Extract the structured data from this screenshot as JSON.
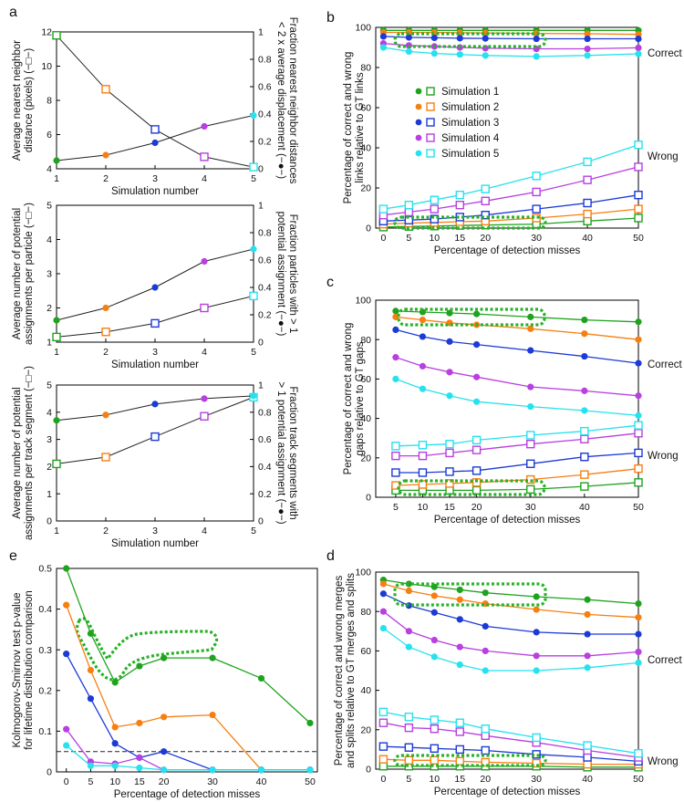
{
  "colors": {
    "s1": "#1fa31f",
    "s2": "#f77f12",
    "s3": "#1c3ad6",
    "s4": "#b83fe0",
    "s5": "#26e1ee",
    "black": "#222222",
    "highlight": "#27b227"
  },
  "panel_labels": [
    "a",
    "b",
    "c",
    "d",
    "e"
  ],
  "legend": [
    "Simulation 1",
    "Simulation 2",
    "Simulation 3",
    "Simulation 4",
    "Simulation 5"
  ],
  "chart_data": [
    {
      "id": "a1",
      "type": "line",
      "xlabel": "Simulation number",
      "ylabel": [
        "Average nearest neighbor",
        "distance (pixels) (−□−)"
      ],
      "ylabel_right": [
        "Fraction nearest neighbor distances",
        "< 2 x average displacement (−●−)"
      ],
      "x": [
        1,
        2,
        3,
        4,
        5
      ],
      "xticks": [
        "1",
        "2",
        "3",
        "4",
        "5"
      ],
      "yticks_left": [
        "4",
        "6",
        "8",
        "10",
        "12"
      ],
      "ylim_left": [
        4,
        12
      ],
      "yticks_right": [
        "0",
        "0.2",
        "0.4",
        "0.6",
        "0.8",
        "1"
      ],
      "ylim_right": [
        0,
        1
      ],
      "series": [
        {
          "name": "Average nearest neighbor distance",
          "marker": "square",
          "axis": "left",
          "values": [
            11.8,
            8.65,
            6.3,
            4.7,
            4.1
          ]
        },
        {
          "name": "Fraction nearest neighbor distances < 2x average displacement",
          "marker": "circle",
          "axis": "right",
          "values": [
            0.06,
            0.1,
            0.19,
            0.31,
            0.39
          ]
        }
      ]
    },
    {
      "id": "a2",
      "type": "line",
      "xlabel": "Simulation number",
      "ylabel": [
        "Average number of potential",
        "assignments per particle (−□−)"
      ],
      "ylabel_right": [
        "Fraction particles with > 1",
        "potential assignment (−●−)"
      ],
      "x": [
        1,
        2,
        3,
        4,
        5
      ],
      "xticks": [
        "1",
        "2",
        "3",
        "4",
        "5"
      ],
      "yticks_left": [
        "1",
        "2",
        "3",
        "4",
        "5"
      ],
      "ylim_left": [
        1,
        5
      ],
      "yticks_right": [
        "0",
        "0.2",
        "0.4",
        "0.6",
        "0.8",
        "1"
      ],
      "ylim_right": [
        0,
        1
      ],
      "series": [
        {
          "name": "Average number of potential assignments per particle",
          "marker": "square",
          "axis": "left",
          "values": [
            1.15,
            1.3,
            1.55,
            2.0,
            2.35
          ]
        },
        {
          "name": "Fraction particles with > 1 potential assignment",
          "marker": "circle",
          "axis": "right",
          "values": [
            0.16,
            0.25,
            0.4,
            0.59,
            0.68
          ]
        }
      ]
    },
    {
      "id": "a3",
      "type": "line",
      "xlabel": "Simulation number",
      "ylabel": [
        "Average number of potential",
        "assignments per track segment (−□−)"
      ],
      "ylabel_right": [
        "Fraction track segments with",
        "> 1 potential assignment (−●−)"
      ],
      "x": [
        1,
        2,
        3,
        4,
        5
      ],
      "xticks": [
        "1",
        "2",
        "3",
        "4",
        "5"
      ],
      "yticks_left": [
        "0",
        "1",
        "2",
        "3",
        "4",
        "5"
      ],
      "ylim_left": [
        0,
        5
      ],
      "yticks_right": [
        "0",
        "0.2",
        "0.4",
        "0.6",
        "0.8",
        "1"
      ],
      "ylim_right": [
        0,
        1
      ],
      "series": [
        {
          "name": "Average number of potential assignments per track segment",
          "marker": "square",
          "axis": "left",
          "values": [
            2.1,
            2.35,
            3.1,
            3.85,
            4.55
          ]
        },
        {
          "name": "Fraction track segments with > 1 potential assignment",
          "marker": "circle",
          "axis": "right",
          "values": [
            0.74,
            0.78,
            0.86,
            0.9,
            0.92
          ]
        }
      ]
    },
    {
      "id": "b",
      "type": "line",
      "xlabel": "Percentage of detection misses",
      "ylabel": [
        "Percentage of correct and wrong",
        "links relative to GT links"
      ],
      "x": [
        0,
        5,
        10,
        15,
        20,
        30,
        40,
        50
      ],
      "xticks": [
        "0",
        "5",
        "10",
        "15",
        "20",
        "30",
        "40",
        "50"
      ],
      "yticks": [
        "0",
        "20",
        "40",
        "60",
        "80",
        "100"
      ],
      "ylim": [
        0,
        100
      ],
      "labels": {
        "correct": "Correct",
        "wrong": "Wrong"
      },
      "correct": [
        {
          "name": "Simulation 1",
          "values": [
            98.5,
            98.5,
            98.5,
            98.5,
            98.5,
            98.5,
            98.5,
            98.5
          ]
        },
        {
          "name": "Simulation 2",
          "values": [
            97.5,
            97.5,
            97.5,
            97.3,
            97.2,
            97.0,
            96.8,
            96.5
          ]
        },
        {
          "name": "Simulation 3",
          "values": [
            95.5,
            95.0,
            94.8,
            94.6,
            94.5,
            94.3,
            94.3,
            94.3
          ]
        },
        {
          "name": "Simulation 4",
          "values": [
            92.0,
            91.0,
            90.5,
            90.0,
            89.6,
            89.3,
            89.3,
            89.8
          ]
        },
        {
          "name": "Simulation 5",
          "values": [
            90.0,
            88.0,
            87.0,
            86.5,
            86.0,
            85.5,
            86.0,
            86.8
          ]
        }
      ],
      "wrong": [
        {
          "name": "Simulation 1",
          "values": [
            0.5,
            0.8,
            1.0,
            1.3,
            1.5,
            2.0,
            3.5,
            5.0
          ]
        },
        {
          "name": "Simulation 2",
          "values": [
            2.0,
            2.5,
            2.8,
            3.2,
            3.5,
            5.0,
            7.0,
            9.5
          ]
        },
        {
          "name": "Simulation 3",
          "values": [
            3.5,
            4.0,
            4.5,
            5.5,
            6.5,
            9.5,
            12.5,
            16.5
          ]
        },
        {
          "name": "Simulation 4",
          "values": [
            6.5,
            8.0,
            9.5,
            11.5,
            13.5,
            18.0,
            24.0,
            30.5
          ]
        },
        {
          "name": "Simulation 5",
          "values": [
            9.5,
            11.5,
            14.0,
            16.5,
            19.5,
            26.0,
            33.0,
            41.5
          ]
        }
      ]
    },
    {
      "id": "c",
      "type": "line",
      "xlabel": "Percentage of detection misses",
      "ylabel": [
        "Percentage of correct and wrong",
        "gaps relative to GT gaps"
      ],
      "x": [
        5,
        10,
        15,
        20,
        30,
        40,
        50
      ],
      "xticks": [
        "5",
        "10",
        "15",
        "20",
        "30",
        "40",
        "50"
      ],
      "yticks": [
        "0",
        "20",
        "40",
        "60",
        "80",
        "100"
      ],
      "ylim": [
        0,
        100
      ],
      "labels": {
        "correct": "Correct",
        "wrong": "Wrong"
      },
      "correct": [
        {
          "name": "Simulation 1",
          "values": [
            94.5,
            94.0,
            93.5,
            93.0,
            91.5,
            90.0,
            89.0
          ]
        },
        {
          "name": "Simulation 2",
          "values": [
            91.5,
            90.0,
            88.5,
            87.5,
            85.5,
            83.0,
            80.0
          ]
        },
        {
          "name": "Simulation 3",
          "values": [
            85.0,
            81.5,
            79.0,
            77.5,
            74.5,
            71.5,
            68.0
          ]
        },
        {
          "name": "Simulation 4",
          "values": [
            71.0,
            66.5,
            63.5,
            61.0,
            56.0,
            54.0,
            51.5
          ]
        },
        {
          "name": "Simulation 5",
          "values": [
            60.0,
            55.0,
            51.5,
            48.5,
            46.0,
            44.0,
            41.5
          ]
        }
      ],
      "wrong": [
        {
          "name": "Simulation 1",
          "values": [
            3.5,
            3.5,
            3.5,
            3.5,
            4.0,
            5.5,
            7.5
          ]
        },
        {
          "name": "Simulation 2",
          "values": [
            6.0,
            6.5,
            7.0,
            7.5,
            9.0,
            11.5,
            14.5
          ]
        },
        {
          "name": "Simulation 3",
          "values": [
            12.5,
            12.5,
            13.0,
            13.5,
            17.0,
            20.5,
            22.5
          ]
        },
        {
          "name": "Simulation 4",
          "values": [
            21.0,
            21.0,
            22.5,
            24.0,
            27.0,
            29.5,
            32.5
          ]
        },
        {
          "name": "Simulation 5",
          "values": [
            26.0,
            26.5,
            27.0,
            29.0,
            31.5,
            33.5,
            36.5
          ]
        }
      ]
    },
    {
      "id": "d",
      "type": "line",
      "xlabel": "Percentage of detection misses",
      "ylabel": [
        "Percentage of correct and wrong merges",
        "and splits relative to GT merges and splits"
      ],
      "x": [
        0,
        5,
        10,
        15,
        20,
        30,
        40,
        50
      ],
      "xticks": [
        "0",
        "5",
        "10",
        "15",
        "20",
        "30",
        "40",
        "50"
      ],
      "yticks": [
        "0",
        "20",
        "40",
        "60",
        "80",
        "100"
      ],
      "ylim": [
        0,
        100
      ],
      "labels": {
        "correct": "Correct",
        "wrong": "Wrong"
      },
      "correct": [
        {
          "name": "Simulation 1",
          "values": [
            96.0,
            94.0,
            92.5,
            91.0,
            89.5,
            87.5,
            86.0,
            84.0
          ]
        },
        {
          "name": "Simulation 2",
          "values": [
            94.0,
            90.5,
            88.0,
            86.0,
            84.0,
            81.0,
            78.5,
            77.0
          ]
        },
        {
          "name": "Simulation 3",
          "values": [
            89.0,
            83.0,
            79.5,
            76.0,
            72.5,
            69.5,
            68.5,
            68.5
          ]
        },
        {
          "name": "Simulation 4",
          "values": [
            80.0,
            70.0,
            65.5,
            62.0,
            60.0,
            57.5,
            57.5,
            59.5
          ]
        },
        {
          "name": "Simulation 5",
          "values": [
            71.5,
            62.0,
            57.0,
            53.0,
            50.0,
            50.0,
            51.5,
            54.0
          ]
        }
      ],
      "wrong": [
        {
          "name": "Simulation 1",
          "values": [
            1.5,
            1.5,
            1.5,
            1.5,
            1.5,
            1.5,
            1.0,
            1.0
          ]
        },
        {
          "name": "Simulation 2",
          "values": [
            5.0,
            4.5,
            4.5,
            4.0,
            3.5,
            3.0,
            2.5,
            2.5
          ]
        },
        {
          "name": "Simulation 3",
          "values": [
            11.5,
            11.0,
            10.5,
            10.0,
            9.5,
            7.5,
            6.0,
            4.0
          ]
        },
        {
          "name": "Simulation 4",
          "values": [
            23.5,
            21.0,
            20.5,
            19.0,
            17.0,
            13.5,
            9.5,
            6.0
          ]
        },
        {
          "name": "Simulation 5",
          "values": [
            29.0,
            26.5,
            25.0,
            23.5,
            20.5,
            16.0,
            12.0,
            8.0
          ]
        }
      ]
    },
    {
      "id": "e",
      "type": "line",
      "xlabel": "Percentage of detection misses",
      "ylabel": [
        "Kolmogorov-Smirnov test p-value",
        "for lifetime distribution comparison"
      ],
      "x": [
        0,
        5,
        10,
        15,
        20,
        30,
        40,
        50
      ],
      "xticks": [
        "0",
        "5",
        "10",
        "15",
        "20",
        "30",
        "40",
        "50"
      ],
      "yticks": [
        "0",
        "0.1",
        "0.2",
        "0.3",
        "0.4",
        "0.5"
      ],
      "ylim": [
        0,
        0.5
      ],
      "threshold": 0.05,
      "series": [
        {
          "name": "Simulation 1",
          "values": [
            0.5,
            0.34,
            0.22,
            0.26,
            0.28,
            0.28,
            0.23,
            0.12
          ]
        },
        {
          "name": "Simulation 2",
          "values": [
            0.41,
            0.25,
            0.11,
            0.12,
            0.135,
            0.14,
            0.005,
            0.005
          ]
        },
        {
          "name": "Simulation 3",
          "values": [
            0.29,
            0.18,
            0.07,
            0.035,
            0.05,
            0.005,
            0.005,
            0.005
          ]
        },
        {
          "name": "Simulation 4",
          "values": [
            0.105,
            0.025,
            0.02,
            0.035,
            0.005,
            0.005,
            0.005,
            0.005
          ]
        },
        {
          "name": "Simulation 5",
          "values": [
            0.065,
            0.015,
            0.015,
            0.01,
            0.005,
            0.005,
            0.005,
            0.005
          ]
        }
      ]
    }
  ]
}
